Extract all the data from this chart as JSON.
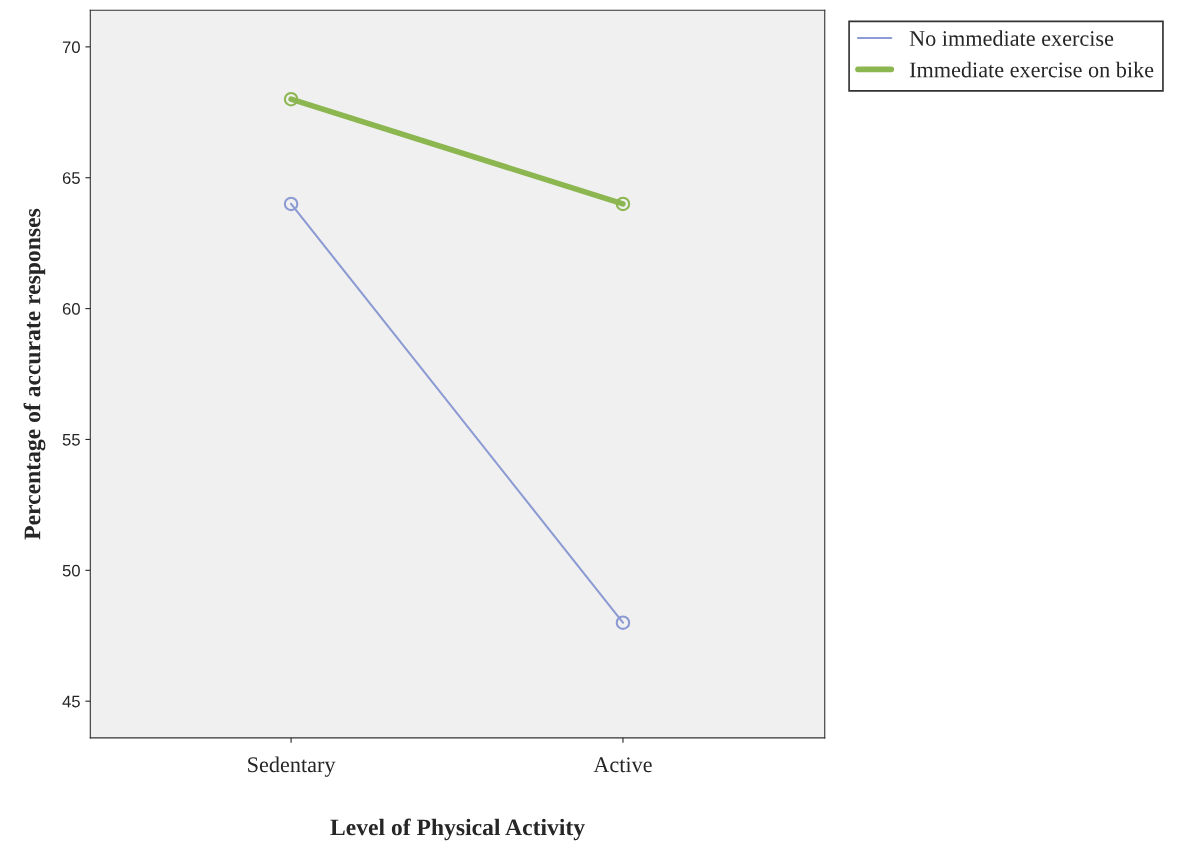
{
  "chart_data": {
    "type": "line",
    "xlabel": "Level of Physical Activity",
    "ylabel": "Percentage of accurate responses",
    "categories": [
      "Sedentary",
      "Active"
    ],
    "series": [
      {
        "name": "No immediate exercise",
        "color": "#8c9bd3",
        "values": [
          64,
          48
        ]
      },
      {
        "name": "Immediate exercise on bike",
        "color": "#8cb650",
        "values": [
          68,
          64
        ]
      }
    ],
    "ylim": [
      43.6,
      71.4
    ],
    "yticks": [
      45,
      50,
      55,
      60,
      65,
      70
    ],
    "grid": false,
    "legend": "top right",
    "marker": "circle",
    "line_style": "solid"
  }
}
